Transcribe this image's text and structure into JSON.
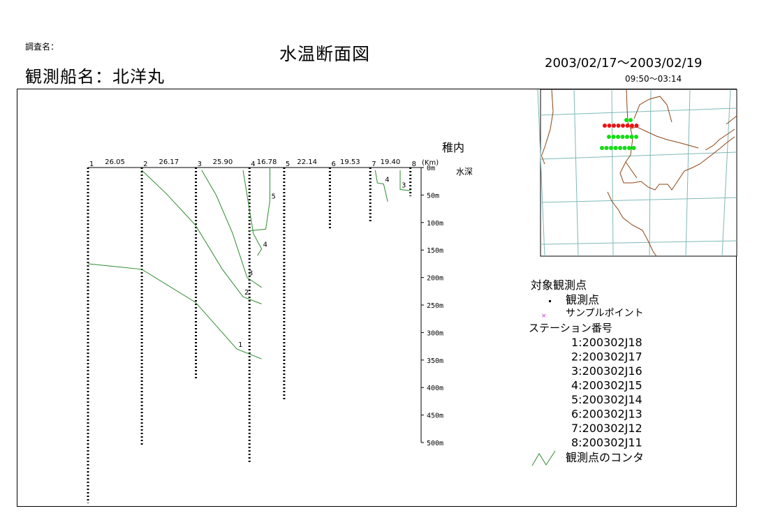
{
  "header": {
    "survey_label": "調査名：",
    "ship_name": "観測船名：北洋丸",
    "title": "水温断面図",
    "date_range": "2003/02/17～2003/02/19",
    "time_range": "09:50～03:14"
  },
  "chart_data": {
    "type": "contour-section",
    "title": "水温断面図",
    "section_name": "稚内",
    "depth_label": "水深",
    "distance_unit": "(Km)",
    "depth_ticks": [
      "0m",
      "50m",
      "100m",
      "150m",
      "200m",
      "250m",
      "300m",
      "350m",
      "400m",
      "450m",
      "500m"
    ],
    "depth_values": [
      0,
      50,
      100,
      150,
      200,
      250,
      300,
      350,
      400,
      450,
      500
    ],
    "ylim": [
      0,
      500
    ],
    "stations": [
      {
        "id": "1",
        "code": "200302J18",
        "max_depth": 610
      },
      {
        "id": "2",
        "code": "200302J17",
        "max_depth": 505
      },
      {
        "id": "3",
        "code": "200302J16",
        "max_depth": 385
      },
      {
        "id": "4",
        "code": "200302J15",
        "max_depth": 537
      },
      {
        "id": "5",
        "code": "200302J14",
        "max_depth": 425
      },
      {
        "id": "6",
        "code": "200302J13",
        "max_depth": 113
      },
      {
        "id": "7",
        "code": "200302J12",
        "max_depth": 100
      },
      {
        "id": "8",
        "code": "200302J11",
        "max_depth": 52
      }
    ],
    "segment_distances": [
      "26.05",
      "26.17",
      "25.90",
      "16.78",
      "22.14",
      "19.53",
      "19.40"
    ],
    "contours": [
      {
        "level": "1",
        "points": [
          [
            0,
            175
          ],
          [
            26,
            185
          ],
          [
            52,
            245
          ],
          [
            72,
            330
          ],
          [
            84,
            348
          ]
        ]
      },
      {
        "level": "2",
        "points": [
          [
            26,
            5
          ],
          [
            38,
            48
          ],
          [
            52,
            105
          ],
          [
            65,
            185
          ],
          [
            75,
            235
          ],
          [
            84,
            248
          ]
        ]
      },
      {
        "level": "3",
        "points": [
          [
            55,
            5
          ],
          [
            62,
            50
          ],
          [
            70,
            120
          ],
          [
            77,
            200
          ],
          [
            84,
            218
          ]
        ]
      },
      {
        "level": "4",
        "points": [
          [
            75,
            5
          ],
          [
            80,
            120
          ],
          [
            84,
            148
          ],
          [
            82,
            160
          ]
        ]
      },
      {
        "level": "5",
        "points": [
          [
            78,
            115
          ],
          [
            86,
            112
          ],
          [
            88,
            60
          ],
          [
            88,
            0
          ]
        ]
      },
      {
        "level": "4",
        "points": [
          [
            139,
            5
          ],
          [
            140,
            28
          ],
          [
            143,
            30
          ],
          [
            145,
            62
          ]
        ]
      },
      {
        "level": "3",
        "points": [
          [
            151,
            5
          ],
          [
            151,
            40
          ],
          [
            156,
            42
          ]
        ]
      }
    ],
    "legend": {
      "title": "対象観測点",
      "point_label": "観測点",
      "sample_label": "サンプルポイント",
      "station_title": "ステーション番号",
      "station_entries": [
        "1:200302J18",
        "2:200302J17",
        "3:200302J16",
        "4:200302J15",
        "5:200302J14",
        "6:200302J13",
        "7:200302J12",
        "8:200302J11"
      ],
      "contour_label": "観測点のコンタ"
    },
    "colors": {
      "contour": "#2e8b2e",
      "sample_point": "#cc33cc",
      "map_coast": "#8b4513",
      "map_grid": "#7fb8b8",
      "map_red": "#ee1111",
      "map_green": "#11dd11"
    }
  }
}
